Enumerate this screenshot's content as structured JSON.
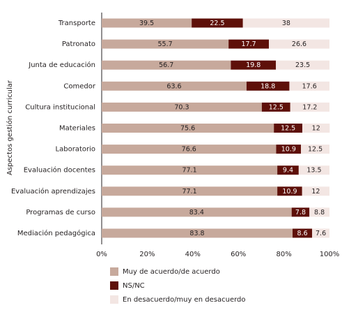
{
  "chart_data": {
    "type": "stacked_bar_horizontal",
    "y_label": "Aspectos gestión curricular",
    "categories": [
      "Transporte",
      "Patronato",
      "Junta de educación",
      "Comedor",
      "Cultura institucional",
      "Materiales",
      "Laboratorio",
      "Evaluación docentes",
      "Evaluación aprendizajes",
      "Programas de curso",
      "Mediación pedagógica"
    ],
    "series": [
      {
        "name": "Muy de acuerdo/de acuerdo",
        "color": "#c7a99c",
        "values": [
          39.5,
          55.7,
          56.7,
          63.6,
          70.3,
          75.6,
          76.6,
          77.1,
          77.1,
          83.4,
          83.8
        ]
      },
      {
        "name": "NS/NC",
        "color": "#5e1009",
        "values": [
          22.5,
          17.7,
          19.8,
          18.8,
          12.5,
          12.5,
          10.9,
          9.4,
          10.9,
          7.8,
          8.6
        ]
      },
      {
        "name": "En desacuerdo/muy en desacuerdo",
        "color": "#f3e6e3",
        "values": [
          38,
          26.6,
          23.5,
          17.6,
          17.2,
          12,
          12.5,
          13.5,
          12,
          8.8,
          7.6
        ]
      }
    ],
    "xlim": [
      0,
      100
    ],
    "xticks": [
      {
        "value": 0,
        "label": "0%"
      },
      {
        "value": 20,
        "label": "20%"
      },
      {
        "value": 40,
        "label": "40%"
      },
      {
        "value": 60,
        "label": "60%"
      },
      {
        "value": 80,
        "label": "80%"
      },
      {
        "value": 100,
        "label": "100%"
      }
    ]
  }
}
